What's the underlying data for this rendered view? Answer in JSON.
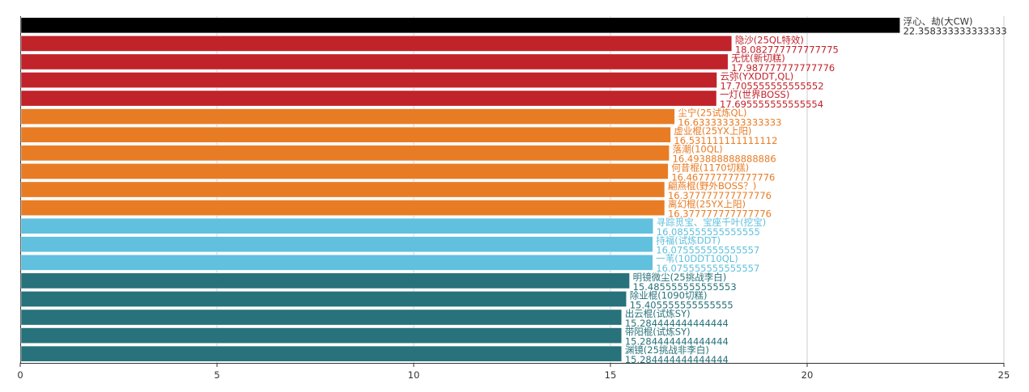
{
  "chart_data": {
    "type": "bar",
    "orientation": "horizontal",
    "title": "",
    "xlabel": "",
    "ylabel": "",
    "xlim": [
      0,
      25
    ],
    "xticks": [
      0,
      5,
      10,
      15,
      20,
      25
    ],
    "grid": true,
    "categories": [
      "浮心、劫(大CW)",
      "隐沙(25QL特效)",
      "无忧(新切糕)",
      "云弥(YXDDT,QL)",
      "一灯(世界BOSS)",
      "尘宁(25试炼QL)",
      "虚业棍(25YX上阳)",
      "落潮(10QL)",
      "何昔棍(1170切糕)",
      "翩燕棍(野外BOSS？)",
      "离幻棍(25YX上阳)",
      "寻踪觅宝、宝座千叶(挖宝)",
      "持福(试炼DDT)",
      "一苇(10DDT10QL)",
      "明镜微尘(25挑战李白)",
      "除业棍(1090切糕)",
      "出云棍(试炼SY)",
      "带阳棍(试炼SY)",
      "渊镜(25挑战非李白)"
    ],
    "values": [
      "22.358333333333333",
      "18.082777777777775",
      "17.987777777777776",
      "17.705555555555552",
      "17.695555555555554",
      "16.633333333333333",
      "16.531111111111112",
      "16.493888888888886",
      "16.467777777777776",
      "16.377777777777776",
      "16.377777777777776",
      "16.085555555555555",
      "16.075555555555557",
      "16.075555555555557",
      "15.485555555555553",
      "15.405555555555555",
      "15.284444444444444",
      "15.284444444444444",
      "15.284444444444444"
    ],
    "colors": [
      "#000000",
      "#c1232b",
      "#c1232b",
      "#c1232b",
      "#c1232b",
      "#e87c25",
      "#e87c25",
      "#e87c25",
      "#e87c25",
      "#e87c25",
      "#e87c25",
      "#60c0dd",
      "#60c0dd",
      "#60c0dd",
      "#27727b",
      "#27727b",
      "#27727b",
      "#27727b",
      "#27727b"
    ],
    "label_colors": [
      "#333333",
      "#c1232b",
      "#c1232b",
      "#c1232b",
      "#c1232b",
      "#e87c25",
      "#e87c25",
      "#e87c25",
      "#e87c25",
      "#e87c25",
      "#e87c25",
      "#60c0dd",
      "#60c0dd",
      "#60c0dd",
      "#27727b",
      "#27727b",
      "#27727b",
      "#27727b",
      "#27727b"
    ]
  }
}
